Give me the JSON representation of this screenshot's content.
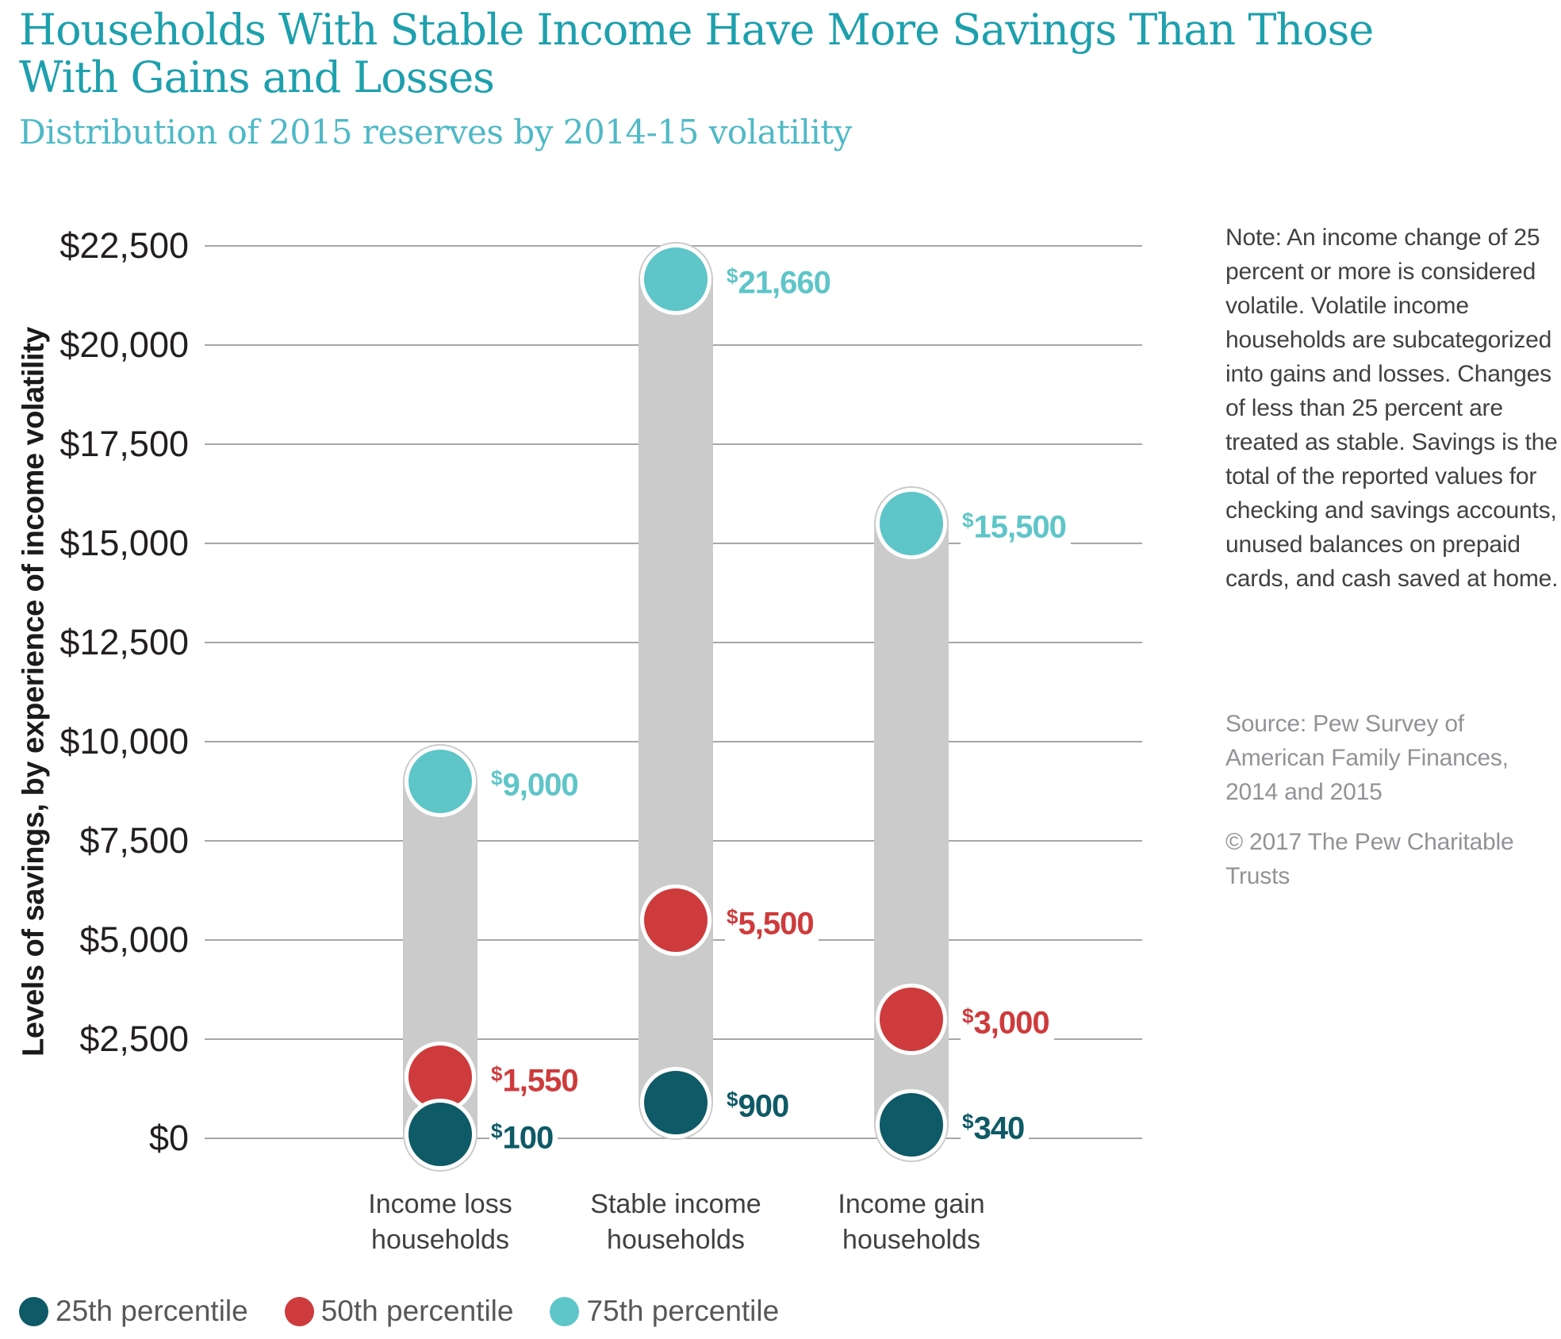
{
  "header": {
    "title_line1": "Households With Stable Income Have More Savings Than Those",
    "title_line2": "With Gains and Losses",
    "subtitle": "Distribution of 2015 reserves by 2014-15 volatility",
    "title_color": "#1EA0AD",
    "subtitle_color": "#4FB9C6"
  },
  "chart_data": {
    "type": "range-dot-bar",
    "title": "Households With Stable Income Have More Savings Than Those With Gains and Losses",
    "subtitle": "Distribution of 2015 reserves by 2014-15 volatility",
    "ylabel": "Levels of savings, by experience of income volatility",
    "ylim": [
      0,
      22500
    ],
    "grid": true,
    "legend_position": "bottom",
    "bar_color": "#CBCBCB",
    "y_ticks": [
      {
        "value": 22500,
        "label": "$22,500"
      },
      {
        "value": 20000,
        "label": "$20,000"
      },
      {
        "value": 17500,
        "label": "$17,500"
      },
      {
        "value": 15000,
        "label": "$15,000"
      },
      {
        "value": 12500,
        "label": "$12,500"
      },
      {
        "value": 10000,
        "label": "$10,000"
      },
      {
        "value": 7500,
        "label": "$7,500"
      },
      {
        "value": 5000,
        "label": "$5,000"
      },
      {
        "value": 2500,
        "label": "$2,500"
      },
      {
        "value": 0,
        "label": "$0"
      }
    ],
    "categories": [
      "Income loss households",
      "Stable income households",
      "Income gain households"
    ],
    "series": [
      {
        "name": "25th percentile",
        "color": "#0E5A66",
        "values": [
          100,
          900,
          340
        ],
        "labels": [
          "$100",
          "$900",
          "$340"
        ]
      },
      {
        "name": "50th percentile",
        "color": "#CE3B3C",
        "values": [
          1550,
          5500,
          3000
        ],
        "labels": [
          "$1,550",
          "$5,500",
          "$3,000"
        ]
      },
      {
        "name": "75th percentile",
        "color": "#5EC5C8",
        "values": [
          9000,
          21660,
          15500
        ],
        "labels": [
          "$9,000",
          "$21,660",
          "$15,500"
        ]
      }
    ]
  },
  "notes": {
    "note": "Note: An income change of 25 percent or more is considered volatile. Volatile income households are subcategorized into gains and losses. Changes of less than 25 percent are treated as stable. Savings is the total of the reported values for checking and savings accounts, unused balances on prepaid cards, and cash saved at home.",
    "source": "Source: Pew Survey of American Family Finances, 2014 and 2015",
    "copyright": "© 2017 The Pew Charitable Trusts"
  }
}
